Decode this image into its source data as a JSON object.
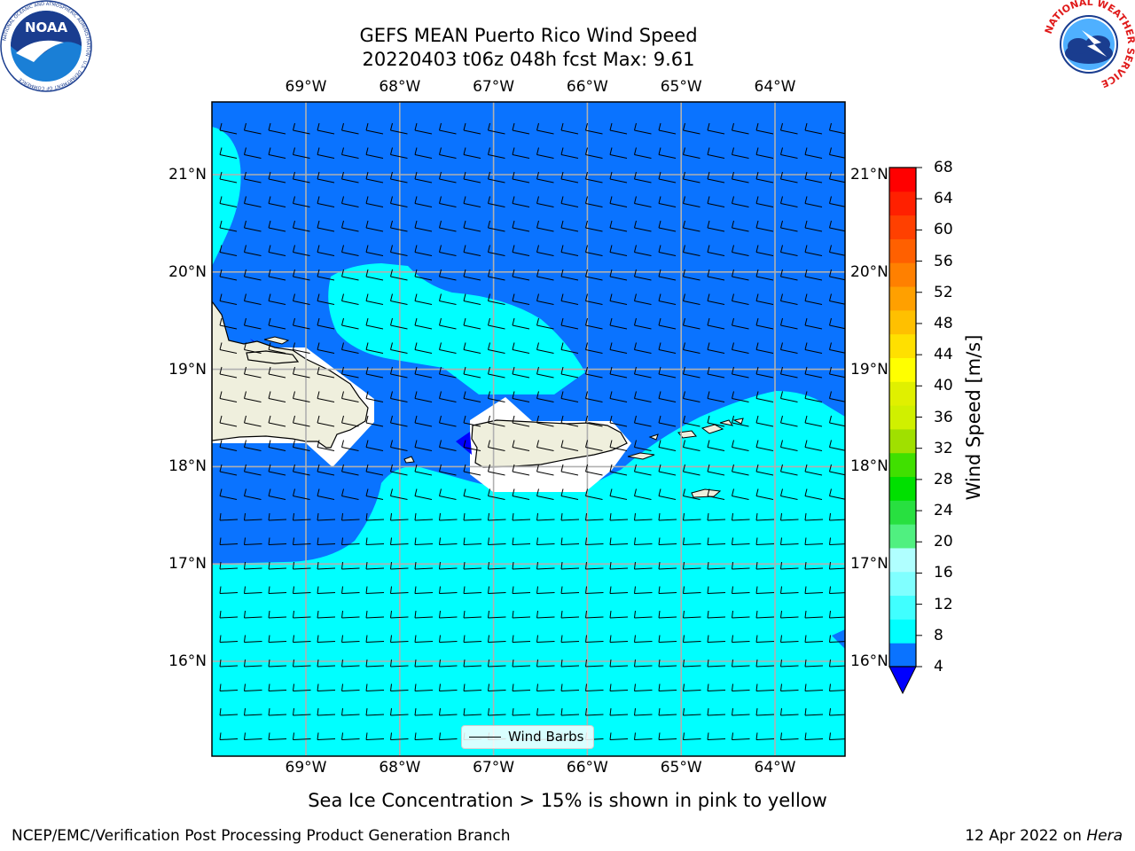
{
  "title": {
    "line1": "GEFS MEAN Puerto Rico Wind Speed",
    "line2": "20220403 t06z 048h fcst   Max: 9.61"
  },
  "logos": {
    "left": "NOAA",
    "left_ring_text": "NATIONAL OCEANIC AND ATMOSPHERIC ADMINISTRATION · U.S. DEPARTMENT OF COMMERCE",
    "right_ring_text": "NATIONAL WEATHER SERVICE"
  },
  "map": {
    "lon_labels": [
      "69°W",
      "68°W",
      "67°W",
      "66°W",
      "65°W",
      "64°W"
    ],
    "lat_labels": [
      "21°N",
      "20°N",
      "19°N",
      "18°N",
      "17°N",
      "16°N"
    ],
    "lon_range": [
      -70.0,
      -63.25
    ],
    "lat_range": [
      15.0,
      21.75
    ],
    "colors": {
      "ocean_4_8": "#0a73ff",
      "ocean_8_12": "#00ffff",
      "below_4": "#0000ff",
      "land": "#efefdd",
      "grid": "#b0b0b0"
    },
    "wind_barbs_legend": "Wind Barbs"
  },
  "colorbar": {
    "label": "Wind Speed [m/s]",
    "ticks": [
      "4",
      "8",
      "12",
      "16",
      "20",
      "24",
      "28",
      "32",
      "36",
      "40",
      "44",
      "48",
      "52",
      "56",
      "60",
      "64",
      "68"
    ],
    "bins": [
      "#0a73ff",
      "#00ffff",
      "#40ffff",
      "#80ffff",
      "#b0ffff",
      "#50f080",
      "#28e040",
      "#00e000",
      "#40e000",
      "#a0e000",
      "#d0f000",
      "#e0f000",
      "#ffff00",
      "#ffe000",
      "#ffc000",
      "#ffa000",
      "#ff8000",
      "#ff6000",
      "#ff4000",
      "#ff2000",
      "#ff0000"
    ],
    "under_color": "#0000ff"
  },
  "footer": {
    "sea_ice_note": "Sea Ice Concentration > 15% is shown in pink to yellow",
    "credit": "NCEP/EMC/Verification Post Processing Product Generation Branch",
    "date": "12 Apr 2022 on",
    "machine": "Hera"
  }
}
